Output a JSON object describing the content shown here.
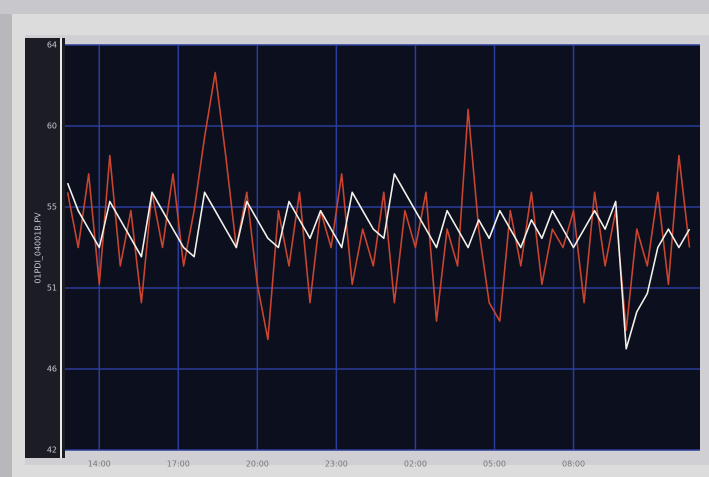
{
  "chart_data": {
    "type": "line",
    "y_label": "01PDI_04001B.PV",
    "x": [
      12.8,
      13.2,
      13.6,
      14.0,
      14.4,
      14.8,
      15.2,
      15.6,
      16.0,
      16.4,
      16.8,
      17.2,
      17.6,
      18.0,
      18.4,
      18.8,
      19.2,
      19.6,
      20.0,
      20.4,
      20.8,
      21.2,
      21.6,
      22.0,
      22.4,
      22.8,
      23.2,
      23.6,
      24.0,
      24.4,
      24.8,
      25.2,
      25.6,
      26.0,
      26.4,
      26.8,
      27.2,
      27.6,
      28.0,
      28.4,
      28.8,
      29.2,
      29.6,
      30.0,
      30.4,
      30.8,
      31.2,
      31.6,
      32.0,
      32.4,
      32.8,
      33.2,
      33.6,
      34.0,
      34.4,
      34.8,
      35.2,
      35.6,
      36.0,
      36.4
    ],
    "series": [
      {
        "color": "#c9452f",
        "values": [
          56,
          53,
          57,
          51,
          58,
          52,
          55,
          50,
          56,
          53,
          57,
          52,
          55,
          59,
          62.5,
          58,
          53,
          56,
          51,
          48,
          55,
          52,
          56,
          50,
          55,
          53,
          57,
          51,
          54,
          52,
          56,
          50,
          55,
          53,
          56,
          49,
          54,
          52,
          60.5,
          54,
          50,
          49,
          55,
          52,
          56,
          51,
          54,
          53,
          55,
          50,
          56,
          52,
          55,
          48.5,
          54,
          52,
          56,
          51,
          58,
          53
        ]
      },
      {
        "color": "#f2f2ea",
        "values": [
          56.5,
          55,
          54,
          53,
          55.5,
          54.5,
          53.5,
          52.5,
          56,
          55,
          54,
          53,
          52.5,
          56,
          55,
          54,
          53,
          55.5,
          54.5,
          53.5,
          53,
          55.5,
          54.5,
          53.5,
          55,
          54,
          53,
          56,
          55,
          54,
          53.5,
          57,
          56,
          55,
          54,
          53,
          55,
          54,
          53,
          54.5,
          53.5,
          55,
          54,
          53,
          54.5,
          53.5,
          55,
          54,
          53,
          54,
          55,
          54,
          55.5,
          47.5,
          49.5,
          50.5,
          53,
          54,
          53,
          54
        ]
      }
    ],
    "xlim": [
      12.7,
      36.8
    ],
    "xticks": [
      {
        "value": 14,
        "label": "14:00"
      },
      {
        "value": 17,
        "label": "17:00"
      },
      {
        "value": 20,
        "label": "20:00"
      },
      {
        "value": 23,
        "label": "23:00"
      },
      {
        "value": 26,
        "label": "02:00"
      },
      {
        "value": 29,
        "label": "05:00"
      },
      {
        "value": 32,
        "label": "08:00"
      }
    ],
    "ylim": [
      42,
      64
    ],
    "yticks": [
      {
        "value": 64,
        "label": "64"
      },
      {
        "value": 59.6,
        "label": "60"
      },
      {
        "value": 55.2,
        "label": "55"
      },
      {
        "value": 50.8,
        "label": "51"
      },
      {
        "value": 46.4,
        "label": "46"
      },
      {
        "value": 42,
        "label": "42"
      }
    ],
    "grid": true
  }
}
